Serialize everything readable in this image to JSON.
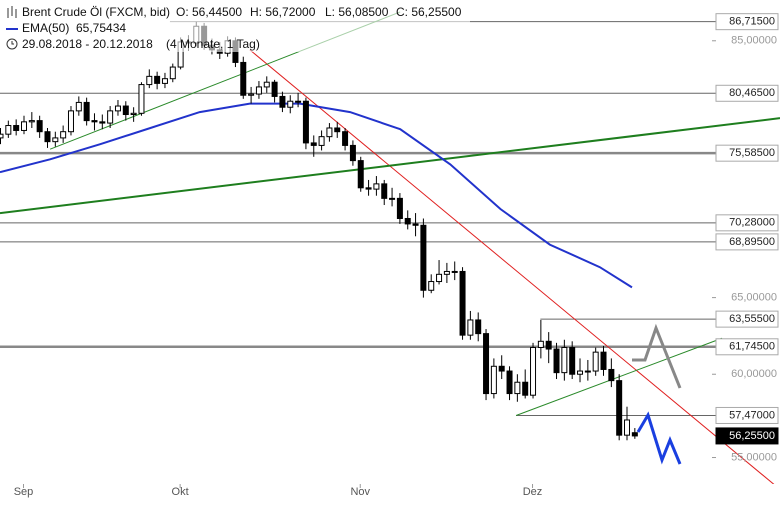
{
  "chart_data": {
    "type": "candlestick",
    "header": {
      "instrument": "Brent Crude Öl (FXCM, bid)",
      "open": "O: 56,44500",
      "high": "H: 56,72000",
      "low": "L: 56,08500",
      "close": "C: 56,25500",
      "range": "29.08.2018 - 20.12.2018",
      "span": "(4 Monate, 1 Tag)"
    },
    "log_scale": true,
    "ylim": [
      53.5,
      88.7
    ],
    "xlim": [
      0,
      99.6
    ],
    "yticks": [
      {
        "value": 85,
        "label": "85,00000"
      },
      {
        "value": 65,
        "label": "65,00000"
      },
      {
        "value": 60,
        "label": "60,00000"
      },
      {
        "value": 55,
        "label": "55,00000"
      }
    ],
    "categories": [
      null,
      null,
      null,
      "Sep",
      null,
      null,
      null,
      null,
      null,
      null,
      null,
      null,
      null,
      null,
      null,
      null,
      null,
      null,
      null,
      null,
      null,
      null,
      null,
      "Okt",
      null,
      null,
      null,
      null,
      null,
      null,
      null,
      null,
      null,
      null,
      null,
      null,
      null,
      null,
      null,
      null,
      null,
      null,
      null,
      null,
      null,
      null,
      "Nov",
      null,
      null,
      null,
      null,
      null,
      null,
      null,
      null,
      null,
      null,
      null,
      null,
      null,
      null,
      null,
      null,
      null,
      null,
      null,
      null,
      null,
      "Dez",
      null,
      null,
      null,
      null,
      null,
      null,
      null,
      null,
      null,
      null,
      null,
      null,
      null
    ],
    "open": [
      76.8,
      77.1,
      77.8,
      77.4,
      78.1,
      78.2,
      77.3,
      76.5,
      76.8,
      77.3,
      79.0,
      79.7,
      78.2,
      78.1,
      78.0,
      79.0,
      79.4,
      78.7,
      78.8,
      81.2,
      81.9,
      81.3,
      81.7,
      82.7,
      84.9,
      84.8,
      86.3,
      84.6,
      84.2,
      83.9,
      85.0,
      83.1,
      80.3,
      80.4,
      81.0,
      81.4,
      80.2,
      79.3,
      79.8,
      79.8,
      76.4,
      76.2,
      76.9,
      77.6,
      77.3,
      76.2,
      75.0,
      72.9,
      72.8,
      73.2,
      72.1,
      72.1,
      70.6,
      70.2,
      70.1,
      65.5,
      66.1,
      66.6,
      66.8,
      66.8,
      62.5,
      63.5,
      62.6,
      58.8,
      60.5,
      60.2,
      58.8,
      59.5,
      58.7,
      61.7,
      62.1,
      61.6,
      60.1,
      61.7,
      60.0,
      60.2,
      60.2,
      61.4,
      60.3,
      59.6,
      56.3,
      56.445
    ],
    "high": [
      77.6,
      78.2,
      78.3,
      78.6,
      78.9,
      78.6,
      77.6,
      77.3,
      77.8,
      79.4,
      80.2,
      80.1,
      78.8,
      78.7,
      79.4,
      79.9,
      79.8,
      79.3,
      81.4,
      82.5,
      82.3,
      82.2,
      83.0,
      85.3,
      85.5,
      86.7,
      86.6,
      85.2,
      84.9,
      85.4,
      85.3,
      83.6,
      81.0,
      81.5,
      81.9,
      81.6,
      80.6,
      80.3,
      80.5,
      80.1,
      77.0,
      77.4,
      78.0,
      78.1,
      77.6,
      76.6,
      75.3,
      73.5,
      73.8,
      73.5,
      72.9,
      72.5,
      71.2,
      71.0,
      70.6,
      66.6,
      67.6,
      67.4,
      67.5,
      67.1,
      64.1,
      64.0,
      62.9,
      61.0,
      61.2,
      60.5,
      60.0,
      60.3,
      62.0,
      63.5,
      62.7,
      62.0,
      62.2,
      62.1,
      61.0,
      60.9,
      61.7,
      61.8,
      61.0,
      60.0,
      58.0,
      56.72
    ],
    "low": [
      76.3,
      76.8,
      77.0,
      77.1,
      77.6,
      76.8,
      76.0,
      76.1,
      76.4,
      77.0,
      78.6,
      77.8,
      77.4,
      77.5,
      77.6,
      78.6,
      78.2,
      78.1,
      78.6,
      80.9,
      80.8,
      80.9,
      81.4,
      82.5,
      84.1,
      84.5,
      84.2,
      83.8,
      83.4,
      83.6,
      82.7,
      80.0,
      79.6,
      80.0,
      80.5,
      79.7,
      78.9,
      78.8,
      79.3,
      75.9,
      75.3,
      75.8,
      76.5,
      76.8,
      75.8,
      74.6,
      72.6,
      72.3,
      72.3,
      71.6,
      71.5,
      70.2,
      69.8,
      69.3,
      65.0,
      65.3,
      65.9,
      66.0,
      66.2,
      62.2,
      62.2,
      62.1,
      58.4,
      58.5,
      59.7,
      58.4,
      58.3,
      58.5,
      58.5,
      61.0,
      60.7,
      59.7,
      59.6,
      59.7,
      59.5,
      59.6,
      59.9,
      59.9,
      59.2,
      56.0,
      56.0,
      56.085
    ],
    "close": [
      77.1,
      77.8,
      77.4,
      78.1,
      78.2,
      77.3,
      76.5,
      76.8,
      77.3,
      79.0,
      79.7,
      78.2,
      78.1,
      78.0,
      79.0,
      79.4,
      78.7,
      78.8,
      81.2,
      81.9,
      81.3,
      81.7,
      82.7,
      84.9,
      84.8,
      86.3,
      84.6,
      84.2,
      83.9,
      85.0,
      83.1,
      80.3,
      80.4,
      81.0,
      81.4,
      80.2,
      79.3,
      79.8,
      79.8,
      76.4,
      76.2,
      76.9,
      77.6,
      77.3,
      76.2,
      75.0,
      72.9,
      72.8,
      73.2,
      72.1,
      72.1,
      70.6,
      70.2,
      70.1,
      65.5,
      66.1,
      66.6,
      66.8,
      66.8,
      62.5,
      63.5,
      62.6,
      58.8,
      60.5,
      60.2,
      58.8,
      59.5,
      58.7,
      61.7,
      62.1,
      61.6,
      60.1,
      61.7,
      60.0,
      60.2,
      60.2,
      61.4,
      60.3,
      59.6,
      56.3,
      57.2,
      56.255
    ],
    "series": [
      {
        "name": "EMA(50)",
        "value_label": "65,75434",
        "color": "#2233cc",
        "x": [
          0,
          6.4,
          12.8,
          19.2,
          25.5,
          31.9,
          38.3,
          44.7,
          51.1,
          57.5,
          63.9,
          70.2,
          76.6,
          80.7
        ],
        "values": [
          74.1,
          75.1,
          76.3,
          77.6,
          78.9,
          79.6,
          79.6,
          78.9,
          77.5,
          74.7,
          71.3,
          68.7,
          67.1,
          65.7
        ]
      }
    ],
    "levels": [
      {
        "value": 86.715,
        "label": "86,71500",
        "from": 21.7,
        "color": "#666666"
      },
      {
        "value": 80.465,
        "label": "80,46500",
        "from": 0,
        "color": "#666666"
      },
      {
        "value": 75.585,
        "label": "75,58500",
        "from": 0,
        "color": "#888888",
        "bold": true
      },
      {
        "value": 70.28,
        "label": "70,28000",
        "from": 0,
        "color": "#666666"
      },
      {
        "value": 68.895,
        "label": "68,89500",
        "from": 0,
        "color": "#666666"
      },
      {
        "value": 63.555,
        "label": "63,55500",
        "from": 69,
        "color": "#666666"
      },
      {
        "value": 61.745,
        "label": "61,74500",
        "from": 0,
        "color": "#888888",
        "bold": true
      },
      {
        "value": 57.47,
        "label": "57,47000",
        "from": 65.9,
        "color": "#666666"
      },
      {
        "value": 56.255,
        "label": "56,25500",
        "last": true
      }
    ],
    "trendlines": [
      {
        "color": "#e02020",
        "points": [
          [
            31.9,
            84.2
          ],
          [
            99.6,
            53.2
          ]
        ]
      },
      {
        "color": "#2a8a2a",
        "points": [
          [
            6.4,
            75.9
          ],
          [
            51.1,
            87.6
          ]
        ]
      },
      {
        "color": "#1e7e1e",
        "bold": true,
        "points": [
          [
            0,
            71.0
          ],
          [
            99.6,
            78.4
          ]
        ]
      },
      {
        "color": "#2a8a2a",
        "points": [
          [
            65.9,
            57.47
          ],
          [
            92.2,
            62.3
          ]
        ]
      }
    ]
  }
}
